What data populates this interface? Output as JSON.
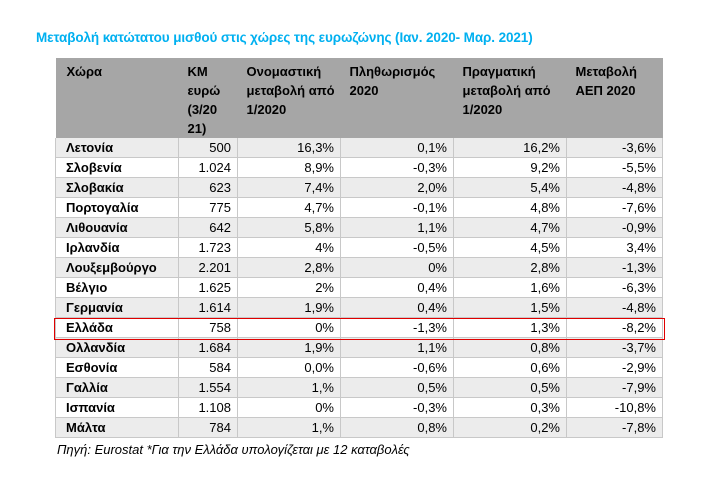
{
  "title": "Μεταβολή κατώτατου μισθού στις χώρες της ευρωζώνης (Ιαν. 2020- Μαρ. 2021)",
  "table": {
    "headers": [
      "Χώρα",
      "ΚΜ ευρώ (3/20 21)",
      "Ονομαστική μεταβολή από  1/2020",
      "Πληθωρισμός 2020",
      "Πραγματική μεταβολή από 1/2020",
      "Μεταβολή ΑΕΠ 2020"
    ],
    "rows": [
      [
        "Λετονία",
        "500",
        "16,3%",
        "0,1%",
        "16,2%",
        "-3,6%"
      ],
      [
        "Σλοβενία",
        "1.024",
        "8,9%",
        "-0,3%",
        "9,2%",
        "-5,5%"
      ],
      [
        "Σλοβακία",
        "623",
        "7,4%",
        "2,0%",
        "5,4%",
        "-4,8%"
      ],
      [
        "Πορτογαλία",
        "775",
        "4,7%",
        "-0,1%",
        "4,8%",
        "-7,6%"
      ],
      [
        "Λιθουανία",
        "642",
        "5,8%",
        "1,1%",
        "4,7%",
        "-0,9%"
      ],
      [
        "Ιρλανδία",
        "1.723",
        "4%",
        "-0,5%",
        "4,5%",
        "3,4%"
      ],
      [
        "Λουξεμβούργο",
        "2.201",
        "2,8%",
        "0%",
        "2,8%",
        "-1,3%"
      ],
      [
        "Βέλγιο",
        "1.625",
        "2%",
        "0,4%",
        "1,6%",
        "-6,3%"
      ],
      [
        "Γερμανία",
        "1.614",
        "1,9%",
        "0,4%",
        "1,5%",
        "-4,8%"
      ],
      [
        "Ελλάδα",
        "758",
        "0%",
        "-1,3%",
        "1,3%",
        "-8,2%"
      ],
      [
        "Ολλανδία",
        "1.684",
        "1,9%",
        "1,1%",
        "0,8%",
        "-3,7%"
      ],
      [
        "Εσθονία",
        "584",
        "0,0%",
        "-0,6%",
        "0,6%",
        "-2,9%"
      ],
      [
        "Γαλλία",
        "1.554",
        "1,%",
        "0,5%",
        "0,5%",
        "-7,9%"
      ],
      [
        "Ισπανία",
        "1.108",
        "0%",
        "-0,3%",
        "0,3%",
        "-10,8%"
      ],
      [
        "Μάλτα",
        "784",
        "1,%",
        "0,8%",
        "0,2%",
        "-7,8%"
      ]
    ],
    "highlighted_row": "Ελλάδα",
    "highlight_color": "#e00000"
  },
  "footer": "Πηγή: Eurostat *Για την Ελλάδα υπολογίζεται με 12 καταβολές",
  "colors": {
    "title": "#00b0f0",
    "header_bg": "#a6a6a6",
    "row_alt_bg": "#ececec"
  }
}
